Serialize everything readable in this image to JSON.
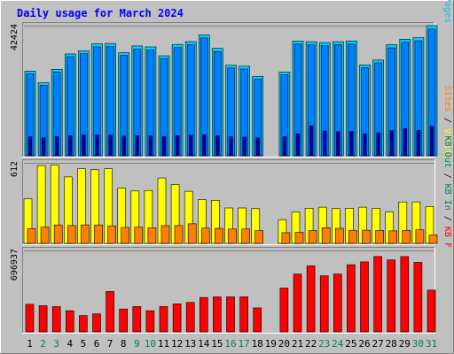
{
  "chart_data": {
    "type": "bar",
    "title": "Daily usage for March 2024",
    "colors": {
      "background": "#c0c0c0",
      "panel": "#c0c0c0",
      "hits": "#00d0ff",
      "files": "#0080ff",
      "pages": "#00c0ff",
      "visits": "#ffff00",
      "sites": "#ff8000",
      "kbf": "#ff0000",
      "weekday_label": "#000000",
      "weekend_label": "#00805c",
      "title": "#0000ff"
    },
    "days": [
      "1",
      "2",
      "3",
      "4",
      "5",
      "6",
      "7",
      "8",
      "9",
      "10",
      "11",
      "12",
      "13",
      "14",
      "15",
      "16",
      "17",
      "18",
      "19",
      "20",
      "21",
      "22",
      "23",
      "24",
      "25",
      "26",
      "27",
      "28",
      "29",
      "30",
      "31"
    ],
    "weekend_days": [
      "2",
      "3",
      "9",
      "10",
      "16",
      "17",
      "23",
      "24",
      "30",
      "31"
    ],
    "panels": [
      {
        "id": "hits",
        "max_label": "42424",
        "ymax": 42424,
        "legend": [
          {
            "text": "Pages",
            "color": "#00c0ff"
          },
          {
            "text": " / ",
            "color": "#000000"
          },
          {
            "text": "Files",
            "color": "#0080ff"
          },
          {
            "text": " / ",
            "color": "#000000"
          },
          {
            "text": "Hits",
            "color": "#00805c"
          }
        ],
        "series": [
          {
            "name": "Hits",
            "values": [
              27600,
              23800,
              28200,
              33200,
              34200,
              36500,
              36600,
              33600,
              35800,
              35500,
              32600,
              36300,
              37200,
              39400,
              35000,
              29500,
              29200,
              25900,
              0,
              27300,
              37400,
              37200,
              36900,
              37200,
              37400,
              29600,
              31200,
              36200,
              38000,
              38500,
              42424
            ]
          },
          {
            "name": "Files",
            "values": [
              26700,
              23000,
              27300,
              32300,
              33300,
              35500,
              35600,
              32700,
              34800,
              34500,
              31700,
              35300,
              36200,
              38400,
              34000,
              28600,
              28300,
              25000,
              0,
              26400,
              36400,
              36200,
              35900,
              36200,
              36400,
              28700,
              30300,
              35200,
              37000,
              37500,
              41300
            ]
          },
          {
            "name": "Pages",
            "values": [
              6200,
              5900,
              6300,
              6600,
              6800,
              6800,
              6700,
              6400,
              6600,
              6500,
              6300,
              6600,
              6700,
              6900,
              6500,
              6200,
              6100,
              5900,
              0,
              6300,
              7200,
              9800,
              8100,
              7900,
              8000,
              7200,
              7500,
              8200,
              8900,
              8300,
              9700
            ]
          }
        ]
      },
      {
        "id": "visits",
        "max_label": "612",
        "ymax": 612,
        "legend": [
          {
            "text": "Visits",
            "color": "#ffff00"
          },
          {
            "text": " / ",
            "color": "#000000"
          },
          {
            "text": "Sites",
            "color": "#ff8000"
          }
        ],
        "series": [
          {
            "name": "Visits",
            "values": [
              338,
              591,
              596,
              505,
              567,
              560,
              567,
              420,
              398,
              402,
              497,
              446,
              396,
              332,
              327,
              269,
              269,
              264,
              0,
              180,
              238,
              267,
              275,
              264,
              267,
              275,
              266,
              238,
              315,
              315,
              280
            ]
          },
          {
            "name": "Sites",
            "values": [
              112,
              123,
              140,
              136,
              140,
              140,
              133,
              121,
              123,
              119,
              135,
              135,
              149,
              116,
              114,
              109,
              109,
              97,
              0,
              81,
              84,
              98,
              119,
              114,
              99,
              100,
              98,
              95,
              98,
              103,
              64
            ]
          }
        ]
      },
      {
        "id": "kbf",
        "max_label": "696937",
        "ymax": 696937,
        "legend": [
          {
            "text": "KB F",
            "color": "#ff0000"
          },
          {
            "text": " / ",
            "color": "#000000"
          },
          {
            "text": "KB In",
            "color": "#00805c"
          },
          {
            "text": " / ",
            "color": "#000000"
          },
          {
            "text": "KB Out",
            "color": "#00805c"
          }
        ],
        "series": [
          {
            "name": "KB F",
            "values": [
              236000,
              224000,
              216000,
              181000,
              139000,
              154000,
              346000,
              196000,
              217000,
              181000,
              217000,
              240000,
              252000,
              294000,
              300000,
              300000,
              300000,
              205000,
              0,
              375000,
              495000,
              565000,
              480000,
              495000,
              575000,
              599000,
              645000,
              616000,
              645000,
              595000,
              357000
            ]
          }
        ]
      }
    ]
  }
}
